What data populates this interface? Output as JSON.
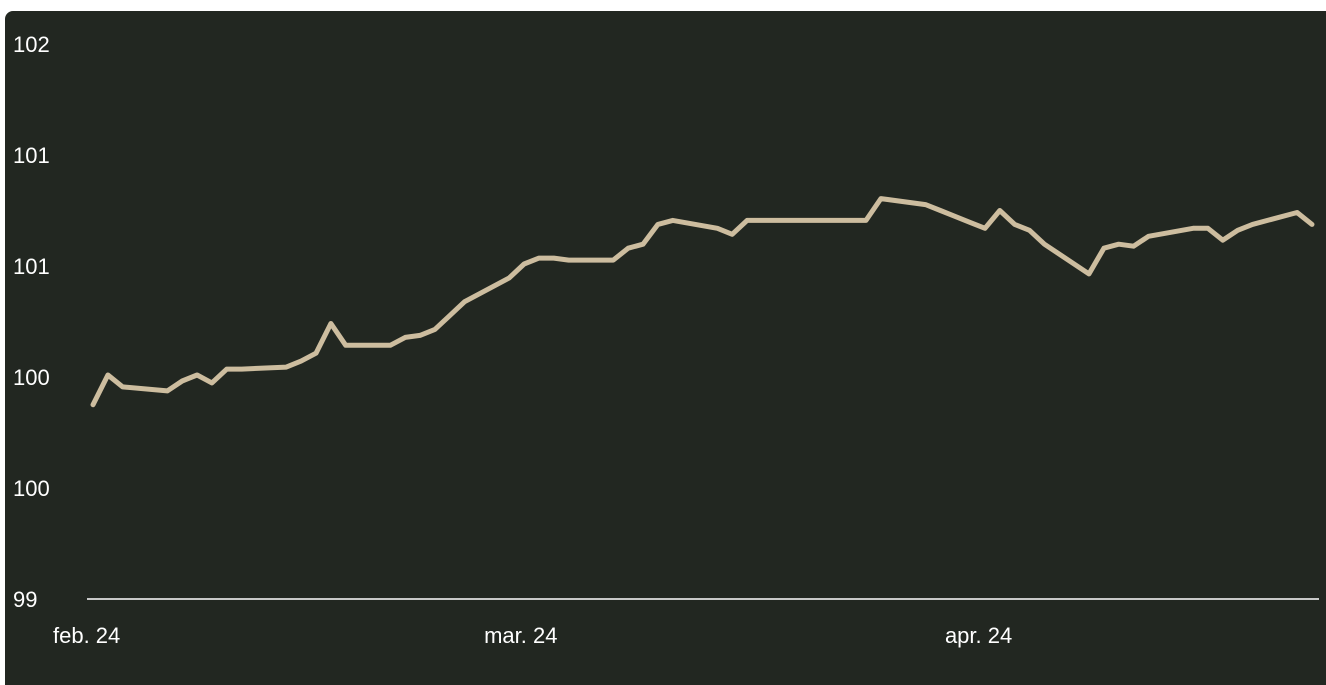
{
  "chart_data": {
    "type": "line",
    "title": "",
    "xlabel": "",
    "ylabel": "",
    "y_tick_labels": [
      "99",
      "100",
      "100",
      "101",
      "101",
      "102"
    ],
    "ylim": [
      99.0,
      101.8
    ],
    "x_tick_labels": [
      "feb. 24",
      "mar. 24",
      "apr. 24"
    ],
    "x_ticks": [
      "2024-02-01",
      "2024-03-01",
      "2024-04-01"
    ],
    "xlim": [
      "2024-02-01",
      "2024-04-23"
    ],
    "grid": false,
    "legend": "none",
    "colors": {
      "background": "#222721",
      "line": "#cdbd9f",
      "axis": "#ffffff",
      "text": "#ffffff"
    },
    "series": [
      {
        "x": [
          "2024-02-01",
          "2024-02-02",
          "2024-02-03",
          "2024-02-06",
          "2024-02-07",
          "2024-02-08",
          "2024-02-09",
          "2024-02-10",
          "2024-02-11",
          "2024-02-14",
          "2024-02-15",
          "2024-02-16",
          "2024-02-17",
          "2024-02-18",
          "2024-02-21",
          "2024-02-22",
          "2024-02-23",
          "2024-02-24",
          "2024-02-25",
          "2024-02-26",
          "2024-02-29",
          "2024-03-01",
          "2024-03-02",
          "2024-03-03",
          "2024-03-04",
          "2024-03-07",
          "2024-03-08",
          "2024-03-09",
          "2024-03-10",
          "2024-03-11",
          "2024-03-14",
          "2024-03-15",
          "2024-03-16",
          "2024-03-17",
          "2024-03-18",
          "2024-03-21",
          "2024-03-22",
          "2024-03-23",
          "2024-03-24",
          "2024-03-25",
          "2024-03-28",
          "2024-03-29",
          "2024-03-30",
          "2024-03-31",
          "2024-04-01",
          "2024-04-02",
          "2024-04-03",
          "2024-04-04",
          "2024-04-05",
          "2024-04-08",
          "2024-04-09",
          "2024-04-10",
          "2024-04-11",
          "2024-04-12",
          "2024-04-15",
          "2024-04-16",
          "2024-04-17",
          "2024-04-18",
          "2024-04-19",
          "2024-04-22",
          "2024-04-23"
        ],
        "values": [
          99.98,
          100.13,
          100.07,
          100.05,
          100.1,
          100.13,
          100.09,
          100.16,
          100.16,
          100.17,
          100.2,
          100.24,
          100.39,
          100.28,
          100.28,
          100.32,
          100.33,
          100.36,
          100.43,
          100.5,
          100.62,
          100.69,
          100.72,
          100.72,
          100.71,
          100.71,
          100.77,
          100.79,
          100.89,
          100.91,
          100.87,
          100.84,
          100.91,
          100.91,
          100.91,
          100.91,
          100.91,
          100.91,
          100.91,
          101.02,
          100.99,
          100.96,
          100.93,
          100.9,
          100.87,
          100.96,
          100.89,
          100.86,
          100.79,
          100.64,
          100.77,
          100.79,
          100.78,
          100.83,
          100.87,
          100.87,
          100.81,
          100.86,
          100.89,
          100.95,
          100.89
        ]
      }
    ]
  }
}
